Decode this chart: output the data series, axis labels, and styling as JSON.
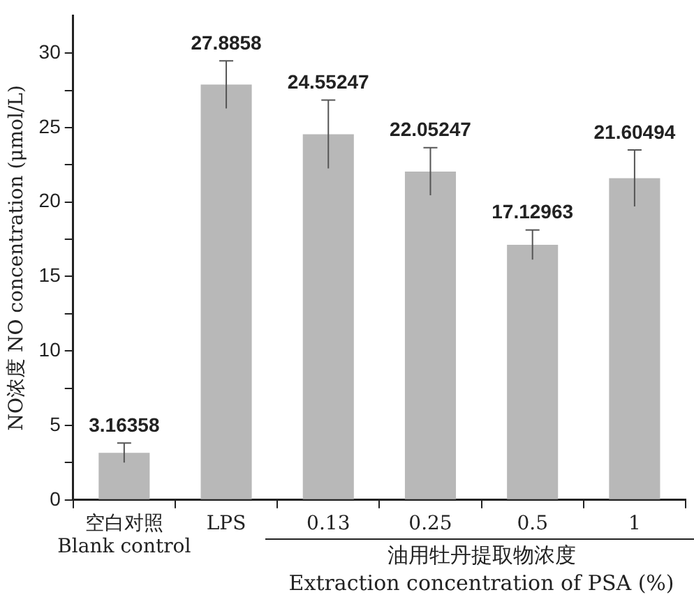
{
  "chart_data": {
    "type": "bar",
    "categories": [
      "空白对照\nBlank control",
      "LPS",
      "0.13",
      "0.25",
      "0.5",
      "1"
    ],
    "values": [
      3.16358,
      27.8858,
      24.55247,
      22.05247,
      17.12963,
      21.60494
    ],
    "errors": [
      0.65,
      1.6,
      2.3,
      1.6,
      1.0,
      1.9
    ],
    "color": "#b8b8b8",
    "data_labels": true,
    "ylabel": "NO浓度 NO concentration (μmol/L)",
    "xlabel": "油用牡丹提取物浓度\nExtraction concentration of PSA (%)",
    "ylim": [
      0,
      32.5
    ],
    "yticks": [
      0,
      {
        "value": 2.5,
        "label": null
      },
      5,
      {
        "value": 7.5,
        "label": null
      },
      10,
      {
        "value": 12.5,
        "label": null
      },
      15,
      {
        "value": 17.5,
        "label": null
      },
      20,
      {
        "value": 22.5,
        "label": null
      },
      25,
      {
        "value": 27.5,
        "label": null
      },
      30
    ],
    "grid": false,
    "legend": false
  }
}
